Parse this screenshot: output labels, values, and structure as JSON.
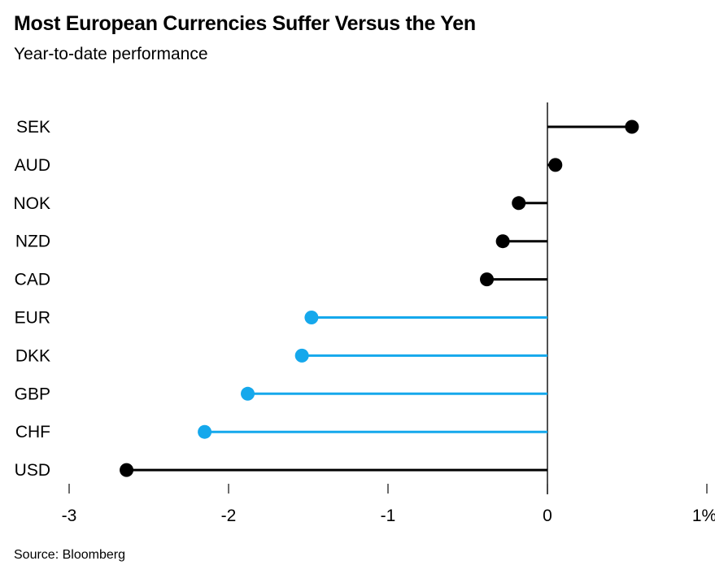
{
  "header": {
    "title": "Most European Currencies Suffer Versus the Yen",
    "subtitle": "Year-to-date performance"
  },
  "source": "Source: Bloomberg",
  "chart_data": {
    "type": "bar",
    "variant": "horizontal_lollipop",
    "title": "Most European Currencies Suffer Versus the Yen",
    "subtitle": "Year-to-date performance",
    "categories": [
      "SEK",
      "AUD",
      "NOK",
      "NZD",
      "CAD",
      "EUR",
      "DKK",
      "GBP",
      "CHF",
      "USD"
    ],
    "values": [
      0.53,
      0.05,
      -0.18,
      -0.28,
      -0.38,
      -1.48,
      -1.54,
      -1.88,
      -2.15,
      -2.64
    ],
    "point_colors": [
      "#000000",
      "#000000",
      "#000000",
      "#000000",
      "#000000",
      "#15a8ec",
      "#15a8ec",
      "#15a8ec",
      "#15a8ec",
      "#000000"
    ],
    "default_color": "#000000",
    "highlight_color": "#15a8ec",
    "axis_color": "#3c3c3c",
    "unit": "%",
    "xlabel": "",
    "ylabel": "",
    "xlim": [
      -3.1,
      1.05
    ],
    "x_ticks": [
      -3,
      -2,
      -1,
      0,
      1
    ],
    "x_tick_labels": [
      "-3",
      "-2",
      "-1",
      "0",
      "1%"
    ],
    "grid": false,
    "legend": "none",
    "source": "Source: Bloomberg"
  }
}
